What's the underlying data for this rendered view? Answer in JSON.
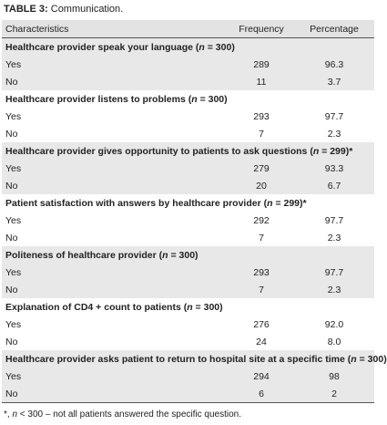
{
  "caption": {
    "label": "TABLE 3:",
    "text": "Communication."
  },
  "table": {
    "header": [
      "Characteristics",
      "Frequency",
      "Percentage"
    ],
    "groups": [
      {
        "heading": [
          "Healthcare provider speak your language (",
          "n",
          " = 300)"
        ],
        "rows": [
          [
            "Yes",
            "289",
            "96.3"
          ],
          [
            "No",
            "11",
            "3.7"
          ]
        ]
      },
      {
        "heading": [
          "Healthcare provider listens to problems (",
          "n",
          " = 300)"
        ],
        "rows": [
          [
            "Yes",
            "293",
            "97.7"
          ],
          [
            "No",
            "7",
            "2.3"
          ]
        ]
      },
      {
        "heading": [
          "Healthcare provider gives opportunity to patients to ask questions (",
          "n",
          " = 299)*"
        ],
        "rows": [
          [
            "Yes",
            "279",
            "93.3"
          ],
          [
            "No",
            "20",
            "6.7"
          ]
        ]
      },
      {
        "heading": [
          "Patient satisfaction with answers by healthcare provider (",
          "n",
          " = 299)*"
        ],
        "rows": [
          [
            "Yes",
            "292",
            "97.7"
          ],
          [
            "No",
            "7",
            "2.3"
          ]
        ]
      },
      {
        "heading": [
          "Politeness of healthcare provider (",
          "n",
          " = 300)"
        ],
        "rows": [
          [
            "Yes",
            "293",
            "97.7"
          ],
          [
            "No",
            "7",
            "2.3"
          ]
        ]
      },
      {
        "heading": [
          "Explanation of CD4 + count to patients (",
          "n",
          " = 300)"
        ],
        "rows": [
          [
            "Yes",
            "276",
            "92.0"
          ],
          [
            "No",
            "24",
            "8.0"
          ]
        ]
      },
      {
        "heading": [
          "Healthcare provider asks patient to return to hospital site at a specific time (",
          "n",
          " = 300)"
        ],
        "rows": [
          [
            "Yes",
            "294",
            "98"
          ],
          [
            "No",
            "6",
            "2"
          ]
        ]
      }
    ]
  },
  "footnote": [
    "*, ",
    "n",
    " < 300 – not all patients answered the specific question."
  ]
}
